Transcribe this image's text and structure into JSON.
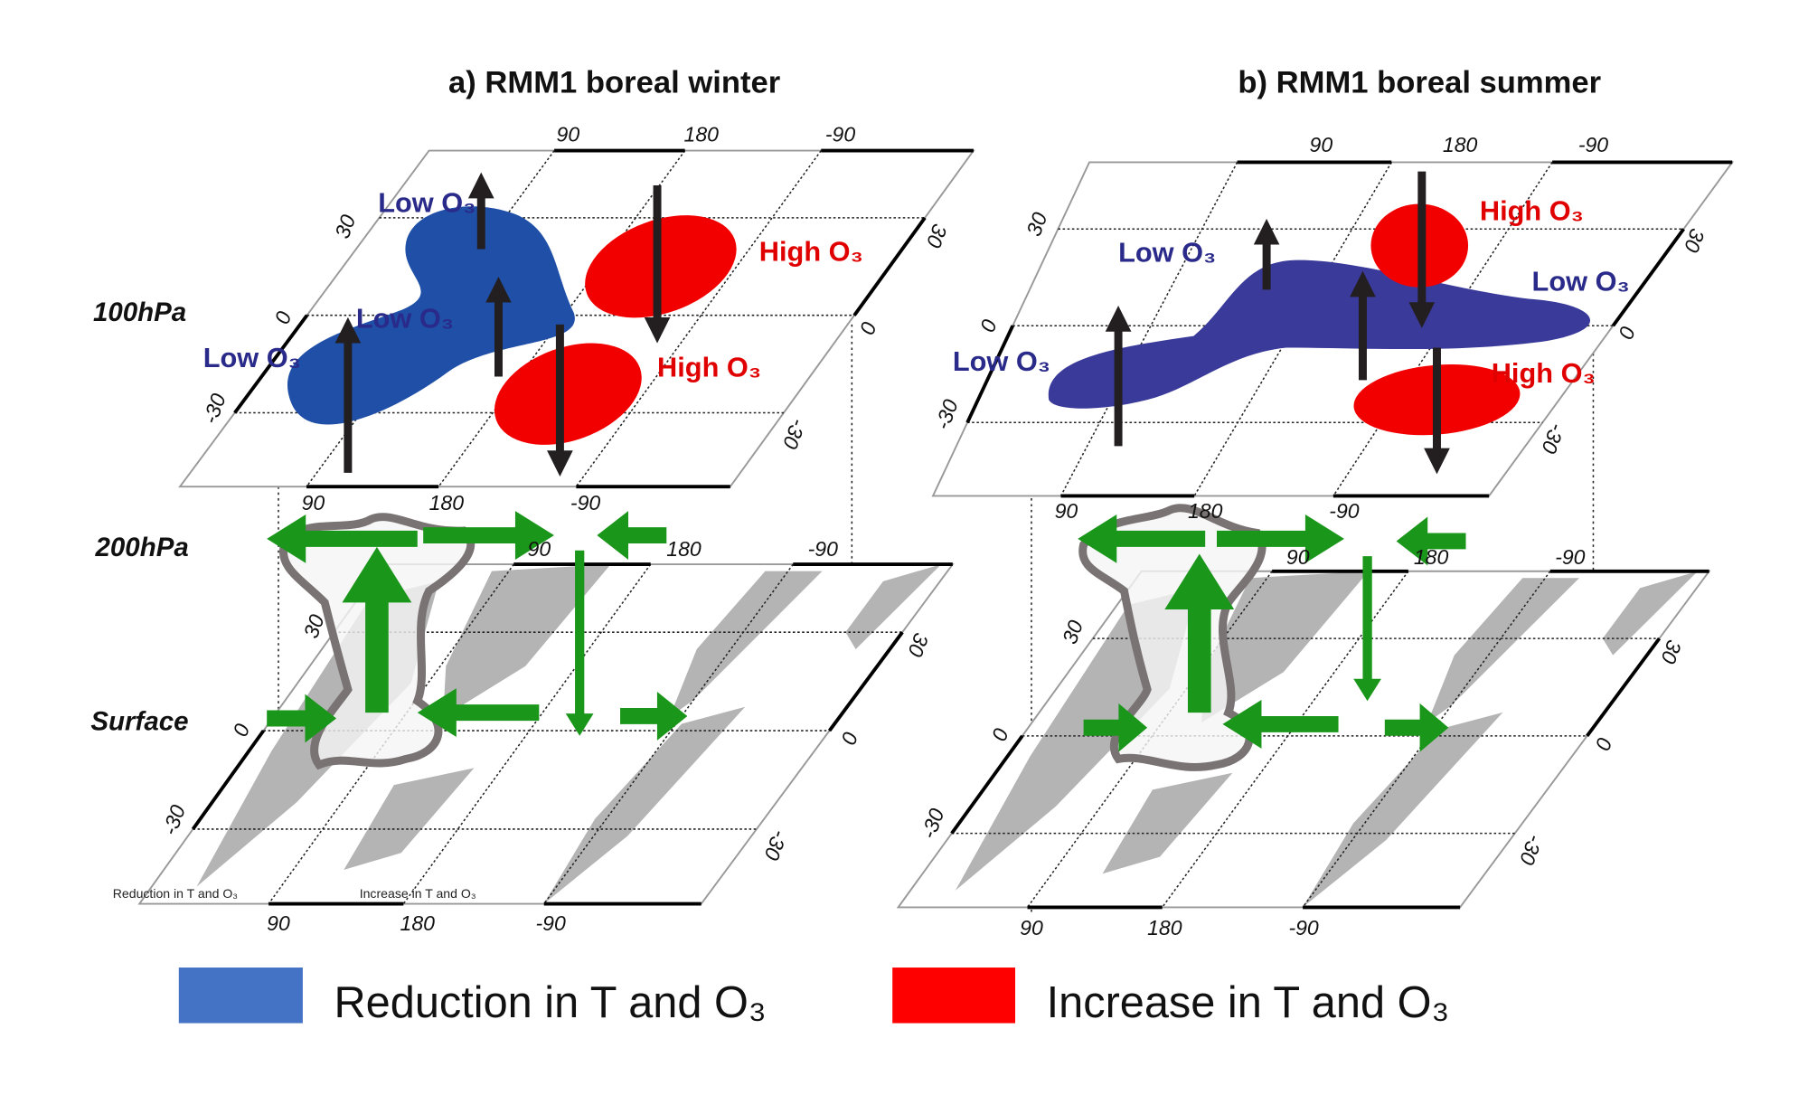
{
  "panels": [
    {
      "title": "a) RMM1 boreal winter",
      "ticks_upper_top": [
        "90",
        "180",
        "-90"
      ],
      "ticks_upper_bottom": [
        "90",
        "180",
        "-90"
      ],
      "ticks_surface_top": [
        "90",
        "180",
        "-90"
      ],
      "ticks_surface_bottom": [
        "90",
        "180",
        "-90"
      ],
      "lat_ticks": [
        "30",
        "0",
        "-30"
      ],
      "regions": [
        "Low O₃",
        "Low O₃",
        "Low O₃",
        "High O₃",
        "High O₃"
      ],
      "inset_captions": [
        "Reduction in T and O₃",
        "Increase in T and O₃"
      ]
    },
    {
      "title": "b) RMM1 boreal summer",
      "ticks_upper_top": [
        "90",
        "180",
        "-90"
      ],
      "ticks_upper_bottom": [
        "90",
        "180",
        "-90"
      ],
      "ticks_surface_top": [
        "90",
        "180",
        "-90"
      ],
      "ticks_surface_bottom": [
        "90",
        "180",
        "-90"
      ],
      "lat_ticks": [
        "30",
        "0",
        "-30"
      ],
      "regions": [
        "Low O₃",
        "Low O₃",
        "Low O₃",
        "High O₃",
        "High O₃"
      ]
    }
  ],
  "levels": [
    "100hPa",
    "200hPa",
    "Surface"
  ],
  "legend": [
    {
      "label": "Reduction in T and O₃",
      "color": "#4472c4"
    },
    {
      "label": "Increase in T and O₃",
      "color": "#ff0000"
    }
  ],
  "colors": {
    "low_o3_winter": "#1f4fa6",
    "low_o3_summer": "#3a3a9a",
    "high_o3": "#f20000",
    "circulation_arrow": "#1a961a",
    "vertical_motion_arrow": "#231f20",
    "convection_outline": "#7a7373",
    "land": "#b4b4b4",
    "low_label": "#2a2a8a",
    "high_label": "#e00000"
  }
}
